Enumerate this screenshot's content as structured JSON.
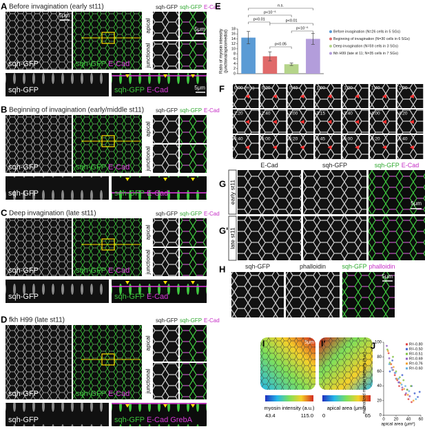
{
  "panel_a": {
    "letter": "A",
    "title": "Before invagination (early st11)",
    "image_label": "sqh-GFP",
    "merge_label": [
      {
        "text": "sqh-GFP",
        "color": "#3ec83e"
      },
      {
        "text": "E-Cad",
        "color": "#d93bd9"
      }
    ],
    "crop_header": [
      {
        "text": "sqh-GFP",
        "color": "#222222"
      },
      {
        "text": "sqh-GFP",
        "color": "#2fa82f"
      },
      {
        "text": "E-Cad",
        "color": "#c52cc5"
      }
    ],
    "apical": "apical",
    "junctional": "junctional",
    "strip_label": "sqh-GFP",
    "strip_merge_label": [
      {
        "text": "sqh-GFP",
        "color": "#3ec83e"
      },
      {
        "text": "E-Cad",
        "color": "#d93bd9"
      }
    ],
    "scale_bars": [
      "5μm",
      "5μm",
      "5μm"
    ]
  },
  "panel_b": {
    "letter": "B",
    "title": "Beginning of invagination (early/middle st11)",
    "image_label": "sqh-GFP",
    "merge_label": [
      {
        "text": "sqh-GFP",
        "color": "#3ec83e"
      },
      {
        "text": "E-Cad",
        "color": "#d93bd9"
      }
    ],
    "crop_header": [
      {
        "text": "sqh-GFP",
        "color": "#222222"
      },
      {
        "text": "sqh-GFP",
        "color": "#2fa82f"
      },
      {
        "text": "E-Cad",
        "color": "#c52cc5"
      }
    ],
    "apical": "apical",
    "junctional": "junctional",
    "strip_label": "sqh-GFP",
    "strip_merge_label": [
      {
        "text": "sqh-GFP",
        "color": "#3ec83e"
      },
      {
        "text": "E-Cad",
        "color": "#d93bd9"
      }
    ]
  },
  "panel_c": {
    "letter": "C",
    "title": "Deep invagination (late st11)",
    "image_label": "sqh-GFP",
    "merge_label": [
      {
        "text": "sqh-GFP",
        "color": "#3ec83e"
      },
      {
        "text": "E-Cad",
        "color": "#d93bd9"
      }
    ],
    "crop_header": [
      {
        "text": "sqh-GFP",
        "color": "#222222"
      },
      {
        "text": "sqh-GFP",
        "color": "#2fa82f"
      },
      {
        "text": "E-Cad",
        "color": "#c52cc5"
      }
    ],
    "apical": "apical",
    "junctional": "junctional",
    "strip_label": "sqh-GFP",
    "strip_merge_label": [
      {
        "text": "sqh-GFP",
        "color": "#3ec83e"
      },
      {
        "text": "E-Cad",
        "color": "#d93bd9"
      }
    ]
  },
  "panel_d": {
    "letter": "D",
    "title": "fkh H99 (late st11)",
    "image_label": "sqh-GFP",
    "merge_label": [
      {
        "text": "sqh-GFP",
        "color": "#3ec83e"
      },
      {
        "text": "E-Cad",
        "color": "#d93bd9"
      }
    ],
    "crop_header": [
      {
        "text": "sqh-GFP",
        "color": "#222222"
      },
      {
        "text": "sqh-GFP",
        "color": "#2fa82f"
      },
      {
        "text": "E-Cad",
        "color": "#c52cc5"
      }
    ],
    "apical": "apical",
    "junctional": "junctional",
    "strip_label": "sqh-GFP",
    "strip_merge_label": [
      {
        "text": "sqh-GFP",
        "color": "#3ec83e"
      },
      {
        "text": "E-Cad",
        "color": "#d93bd9"
      },
      {
        "text": "GrebA",
        "color": "#d93bd9"
      }
    ]
  },
  "panel_f": {
    "letter": "F",
    "frames": [
      "0:00 (m:s)",
      "0:20",
      "0:40",
      "1:00",
      "1:20",
      "1:40",
      "2:00",
      "2:20",
      "2:40",
      "3:00",
      "3:15",
      "3:40",
      "4:00",
      "4:20",
      "4:40",
      "5:00",
      "5:20",
      "5:45",
      "6:00",
      "6:20",
      "6:40"
    ]
  },
  "panel_g": {
    "letter": "G",
    "letter_prime": "G'",
    "headers": [
      [
        {
          "text": "E-Cad",
          "color": "#222222"
        }
      ],
      [
        {
          "text": "sqh-GFP",
          "color": "#222222"
        }
      ],
      [
        {
          "text": "sqh-GFP",
          "color": "#2fa82f"
        },
        {
          "text": "E-Cad",
          "color": "#c52cc5"
        }
      ]
    ],
    "rows": [
      "early st11",
      "late st11"
    ],
    "scale": "5μm"
  },
  "panel_h": {
    "letter": "H",
    "headers": [
      [
        {
          "text": "sqh-GFP",
          "color": "#222222"
        }
      ],
      [
        {
          "text": "phalloidin",
          "color": "#222222"
        }
      ],
      [
        {
          "text": "sqh-GFP",
          "color": "#2fa82f"
        },
        {
          "text": "phalloidin",
          "color": "#c52cc5"
        }
      ]
    ],
    "scale": "5μm"
  },
  "panel_i": {
    "letter": "I",
    "letter_prime": "I'",
    "scale": "5μm",
    "myosin_label": "myosin intensity (a.u.)",
    "myosin_min": "43.4",
    "myosin_max": "115.0",
    "area_label": "apical area (μm²)",
    "area_min": "0",
    "area_max": "65"
  },
  "chart_data": [
    {
      "type": "bar",
      "letter": "E",
      "ylabel": [
        "Ratio of myosin intensity",
        "(junctional/apicomedial)"
      ],
      "categories": [
        null
      ],
      "series": [
        {
          "name": "Before invagination (N=26 cells in 5 SGs)",
          "color": "#5b9bd5",
          "values": [
            14.5
          ],
          "errors": [
            2.5
          ]
        },
        {
          "name": "Beginning of invagination (N=30 cells in 6 SGs)",
          "color": "#e06a6a",
          "values": [
            7.0
          ],
          "errors": [
            1.8
          ]
        },
        {
          "name": "Deep invagination (N=59 cells in 3 SGs)",
          "color": "#b5d48a",
          "values": [
            3.8
          ],
          "errors": [
            0.5
          ]
        },
        {
          "name": "fkh H99 (late st 11; N=35 cells in 7 SGs)",
          "color": "#b39ddb",
          "values": [
            14.0
          ],
          "errors": [
            2.2
          ]
        }
      ],
      "annotations": [
        "n.s.",
        "p<10⁻⁶",
        "p<0.01",
        "p<0.01",
        "p<10⁻⁶",
        "p<0.05"
      ],
      "ylim": [
        0,
        18
      ],
      "yticks": [
        0,
        2,
        4,
        6,
        8,
        10,
        12,
        14,
        16,
        18
      ]
    },
    {
      "type": "scatter",
      "letter": "J",
      "xlabel": "apical area (μm²)",
      "ylabel": "normalized myosin intensity (a.u.)",
      "series": [
        {
          "name": "R=-0.80",
          "color": "#e04040",
          "x": [
            8,
            12,
            15,
            18,
            22,
            25,
            30,
            35,
            40,
            45
          ],
          "values": [
            85,
            70,
            62,
            55,
            48,
            40,
            35,
            28,
            22,
            18
          ]
        },
        {
          "name": "R=-0.50",
          "color": "#4060d0",
          "x": [
            10,
            14,
            20,
            25,
            30,
            38,
            45,
            50,
            55,
            58
          ],
          "values": [
            60,
            75,
            50,
            45,
            55,
            35,
            40,
            30,
            25,
            32
          ]
        },
        {
          "name": "R=-0.51",
          "color": "#80c040",
          "x": [
            6,
            10,
            15,
            20,
            26,
            32,
            38,
            44
          ],
          "values": [
            90,
            72,
            80,
            60,
            52,
            48,
            35,
            40
          ]
        },
        {
          "name": "R=-0.69",
          "color": "#9060c0",
          "x": [
            5,
            9,
            13,
            18,
            24,
            30,
            36,
            42
          ],
          "values": [
            95,
            78,
            65,
            58,
            45,
            38,
            30,
            26
          ]
        },
        {
          "name": "R=-0.76",
          "color": "#f0a030",
          "x": [
            7,
            11,
            16,
            21,
            27,
            33,
            39,
            48
          ],
          "values": [
            88,
            70,
            66,
            50,
            44,
            36,
            28,
            20
          ]
        },
        {
          "name": "R=-0.60",
          "color": "#60b0e0",
          "x": [
            9,
            14,
            19,
            24,
            29,
            35,
            41,
            52
          ],
          "values": [
            70,
            62,
            58,
            50,
            42,
            40,
            33,
            22
          ]
        }
      ],
      "xlim": [
        0,
        60
      ],
      "xticks": [
        0,
        20,
        40,
        60
      ],
      "ylim": [
        0,
        100
      ],
      "yticks": [
        0,
        20,
        40,
        60,
        80,
        100
      ]
    }
  ]
}
